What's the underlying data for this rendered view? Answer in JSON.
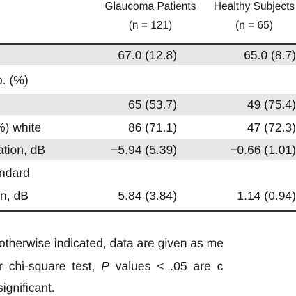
{
  "header": {
    "col1_title": "Glaucoma Patients",
    "col1_n": "(n = 121)",
    "col2_title": "Healthy Subjects",
    "col2_n": "(n = 65)"
  },
  "rows": [
    {
      "label": "",
      "v1": "67.0 (12.8)",
      "v2": "65.0 (8.7)",
      "shaded": true
    },
    {
      "label": "o. (%)",
      "v1": "",
      "v2": "",
      "shaded": false
    },
    {
      "label": "",
      "v1": "65 (53.7)",
      "v2": "49 (75.4)",
      "shaded": true
    },
    {
      "label": "%) white",
      "v1": "86 (71.1)",
      "v2": "47 (72.3)",
      "shaded": false
    },
    {
      "label": "ation, dB",
      "v1": "−5.94 (5.39)",
      "v2": "−0.66 (1.01)",
      "shaded": true
    },
    {
      "label": "ndard",
      "v1": "",
      "v2": "",
      "shaded": false
    },
    {
      "label": "n, dB",
      "v1": "5.84 (3.84)",
      "v2": "1.14 (0.94)",
      "shaded": false
    }
  ],
  "footnotes": {
    "line1": "otherwise indicated, data are given as me",
    "line2_pre": "r chi-square test, ",
    "line2_p": "P",
    "line2_post": " values < .05 are c",
    "line3": "significant."
  }
}
